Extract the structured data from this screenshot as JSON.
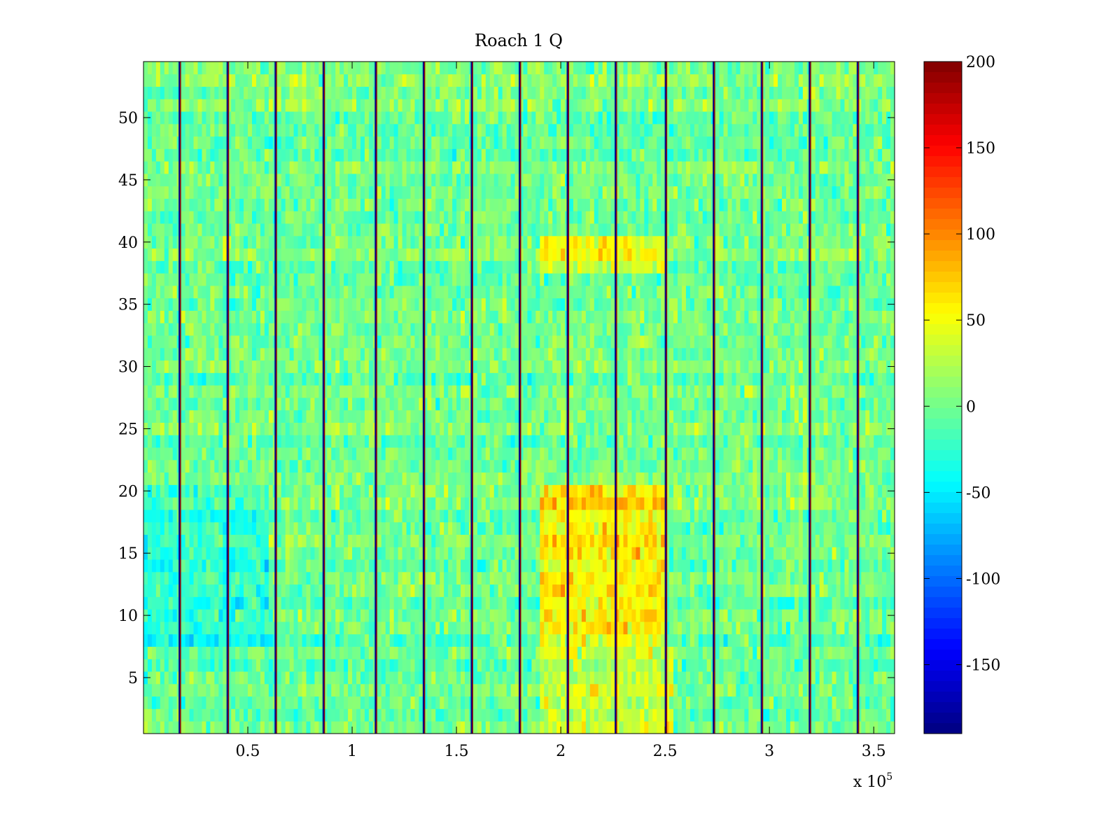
{
  "chart_data": {
    "type": "heatmap",
    "title": "Roach 1 Q",
    "xlabel": "",
    "ylabel": "",
    "x_exponent_label": "x 10",
    "x_exponent_power": "5",
    "xlim": [
      0,
      3.6
    ],
    "ylim": [
      0.5,
      54.5
    ],
    "x_ticks": [
      0.5,
      1,
      1.5,
      2,
      2.5,
      3,
      3.5
    ],
    "x_tick_labels": [
      "0.5",
      "1",
      "1.5",
      "2",
      "2.5",
      "3",
      "3.5"
    ],
    "y_ticks": [
      5,
      10,
      15,
      20,
      25,
      30,
      35,
      40,
      45,
      50
    ],
    "y_tick_labels": [
      "5",
      "10",
      "15",
      "20",
      "25",
      "30",
      "35",
      "40",
      "45",
      "50"
    ],
    "colorbar": {
      "colormap": "jet",
      "clim": [
        -190,
        200
      ],
      "ticks": [
        200,
        150,
        100,
        50,
        0,
        -50,
        -100,
        -150
      ],
      "tick_labels": [
        "200",
        "150",
        "100",
        "50",
        "0",
        "-50",
        "-100",
        "-150"
      ]
    },
    "n_rows": 54,
    "background_level": 0,
    "vertical_stripes_x": [
      0.175,
      0.405,
      0.635,
      0.865,
      1.115,
      1.345,
      1.575,
      1.805,
      2.035,
      2.265,
      2.505,
      2.735,
      2.965,
      3.195,
      3.425
    ],
    "warm_regions": [
      {
        "x": [
          1.9,
          2.5
        ],
        "y": [
          7.5,
          20.5
        ],
        "level": 60
      },
      {
        "x": [
          1.9,
          2.5
        ],
        "y": [
          37.5,
          40.5
        ],
        "level": 45
      },
      {
        "x": [
          1.9,
          2.55
        ],
        "y": [
          0.5,
          7.5
        ],
        "level": 35
      }
    ],
    "cool_regions": [
      {
        "x": [
          0,
          0.6
        ],
        "y": [
          7.5,
          20.5
        ],
        "level": -25
      }
    ]
  }
}
